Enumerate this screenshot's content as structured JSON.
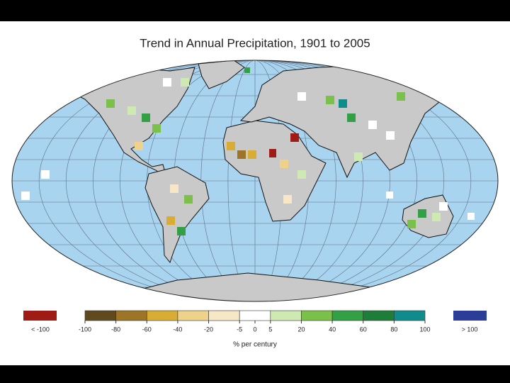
{
  "title": "Trend in Annual Precipitation, 1901 to 2005",
  "legend": {
    "unit_label": "% per century",
    "low": {
      "label": "< -100",
      "color": "#9e1b16"
    },
    "high": {
      "label": "> 100",
      "color": "#2b3d98"
    },
    "boundaries": [
      -100,
      -80,
      -60,
      -40,
      -20,
      -5,
      5,
      20,
      40,
      60,
      80,
      100
    ],
    "colors": [
      "#5e4a1c",
      "#9c7526",
      "#d9ad34",
      "#eed28a",
      "#f6e7c6",
      "#ffffff",
      "#cfe9b2",
      "#7cc04c",
      "#33a046",
      "#1f7d3a",
      "#0f8c8c"
    ],
    "ticks": [
      -100,
      -80,
      -60,
      -40,
      -20,
      -5,
      0,
      5,
      20,
      40,
      60,
      80,
      100
    ]
  }
}
